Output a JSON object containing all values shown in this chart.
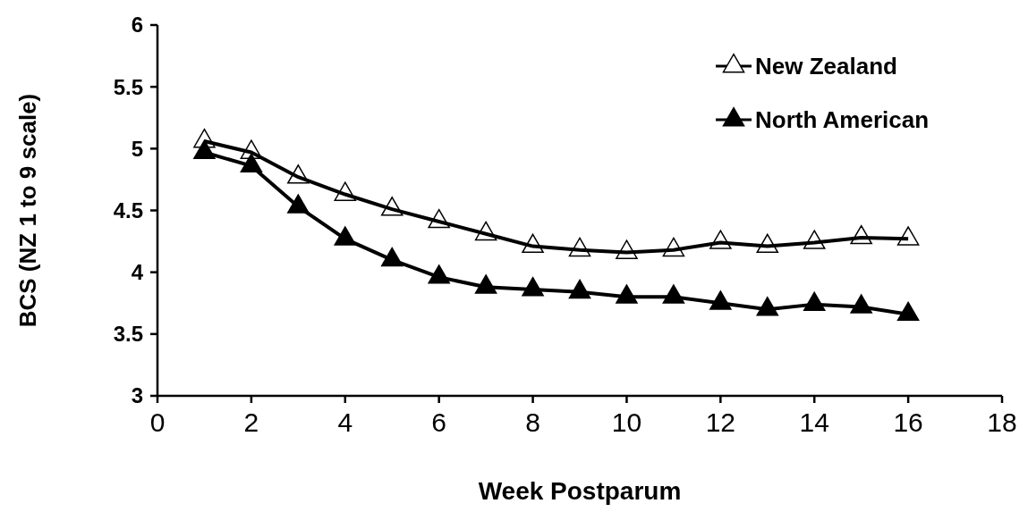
{
  "chart_data": {
    "type": "line",
    "xlabel": "Week Postparum",
    "ylabel": "BCS (NZ 1 to 9 scale)",
    "x": [
      1,
      2,
      3,
      4,
      5,
      6,
      7,
      8,
      9,
      10,
      11,
      12,
      13,
      14,
      15,
      16
    ],
    "series": [
      {
        "name": "New Zealand",
        "color": "#ffffff",
        "values": [
          5.06,
          4.97,
          4.77,
          4.63,
          4.51,
          4.41,
          4.31,
          4.21,
          4.18,
          4.16,
          4.18,
          4.24,
          4.21,
          4.24,
          4.28,
          4.27
        ]
      },
      {
        "name": "North American",
        "color": "#000000",
        "values": [
          4.97,
          4.86,
          4.53,
          4.27,
          4.1,
          3.96,
          3.88,
          3.86,
          3.84,
          3.8,
          3.8,
          3.75,
          3.7,
          3.74,
          3.72,
          3.66
        ]
      }
    ],
    "xlim": [
      0,
      18
    ],
    "xticks": [
      0,
      2,
      4,
      6,
      8,
      10,
      12,
      14,
      16,
      18
    ],
    "ylim": [
      3,
      6
    ],
    "yticks": [
      3,
      3.5,
      4,
      4.5,
      5,
      5.5,
      6
    ],
    "grid": false,
    "legend": "top right",
    "marker": "triangle",
    "line_style": "solid"
  }
}
